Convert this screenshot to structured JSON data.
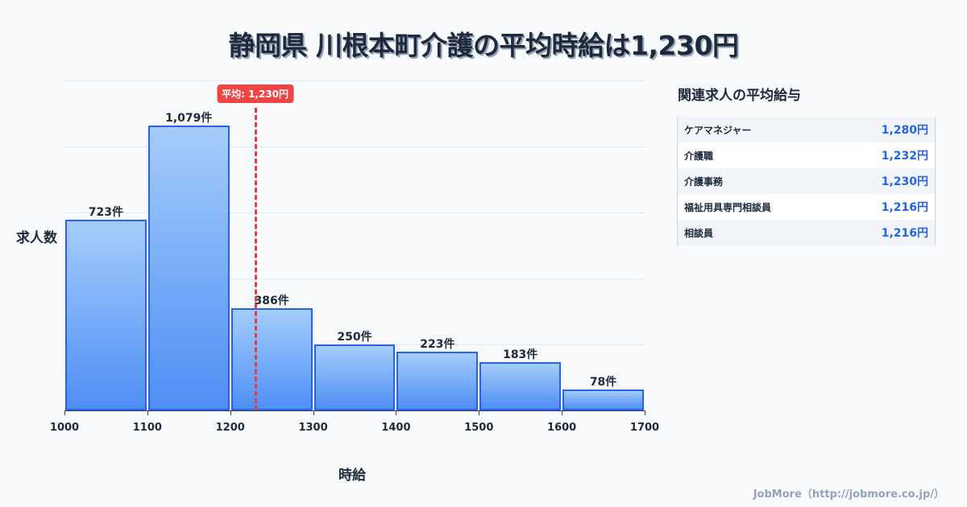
{
  "title": "静岡県 川根本町介護の平均時給は1,230円",
  "chart_data": {
    "type": "bar",
    "title": "静岡県 川根本町介護の平均時給は1,230円",
    "xlabel": "時給",
    "ylabel": "求人数",
    "categories": [
      "1000-1100",
      "1100-1200",
      "1200-1300",
      "1300-1400",
      "1400-1500",
      "1500-1600",
      "1600-1700"
    ],
    "x_ticks": [
      "1000",
      "1100",
      "1200",
      "1300",
      "1400",
      "1500",
      "1600",
      "1700"
    ],
    "values": [
      723,
      1079,
      386,
      250,
      223,
      183,
      78
    ],
    "value_labels": [
      "723件",
      "1,079件",
      "386件",
      "250件",
      "223件",
      "183件",
      "78件"
    ],
    "ylim": [
      0,
      1250
    ],
    "grid": true,
    "average": {
      "value": 1230,
      "label": "平均: 1,230円"
    }
  },
  "side": {
    "title": "関連求人の平均給与",
    "rows": [
      {
        "name": "ケアマネジャー",
        "value": "1,280円"
      },
      {
        "name": "介護職",
        "value": "1,232円"
      },
      {
        "name": "介護事務",
        "value": "1,230円"
      },
      {
        "name": "福祉用具専門相談員",
        "value": "1,216円"
      },
      {
        "name": "相談員",
        "value": "1,216円"
      }
    ]
  },
  "footer": "JobMore（http://jobmore.co.jp/）",
  "colors": {
    "bar_border": "#2563eb",
    "bar_top": "#a5cdfb",
    "bar_bottom": "#4f8ef5",
    "average": "#ef4444",
    "value_text": "#2563eb"
  }
}
